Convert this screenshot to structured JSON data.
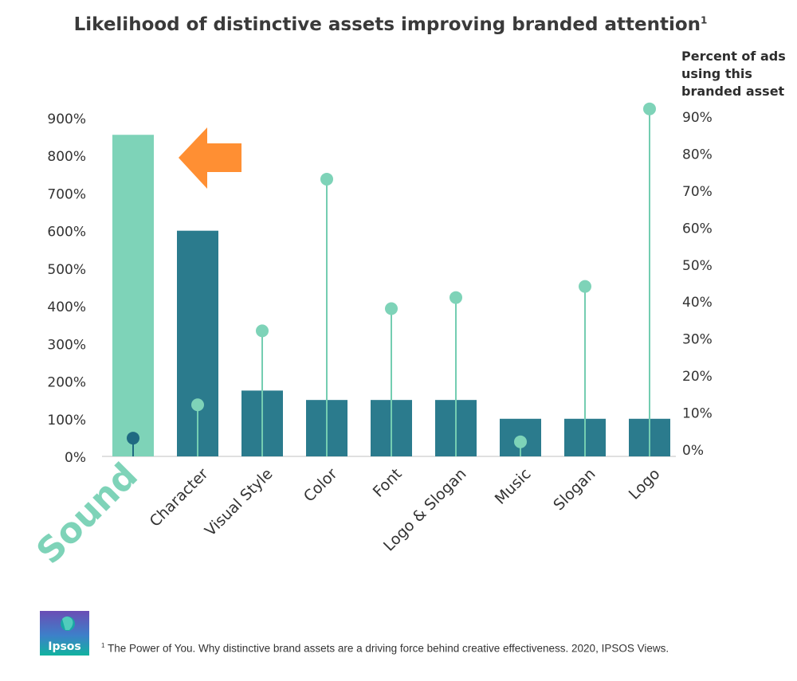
{
  "chart_data": {
    "type": "bar",
    "title": "Likelihood of distinctive assets improving branded attention",
    "title_superscript": "1",
    "categories": [
      "Sound",
      "Character",
      "Visual Style",
      "Color",
      "Font",
      "Logo & Slogan",
      "Music",
      "Slogan",
      "Logo"
    ],
    "series": [
      {
        "name": "Likelihood of improving branded attention",
        "kind": "bar",
        "axis": "left",
        "values": [
          855,
          600,
          175,
          150,
          150,
          150,
          100,
          100,
          100
        ]
      },
      {
        "name": "Percent of ads using this branded asset",
        "kind": "lollipop",
        "axis": "right",
        "values": [
          3,
          12,
          32,
          73,
          38,
          41,
          2,
          44,
          92
        ]
      }
    ],
    "left_axis": {
      "ticks": [
        "0%",
        "100%",
        "200%",
        "300%",
        "400%",
        "500%",
        "600%",
        "700%",
        "800%",
        "900%"
      ],
      "ylim": [
        0,
        900
      ]
    },
    "right_axis": {
      "label": "Percent of ads\nusing this\nbranded asset",
      "ticks": [
        "0%",
        "10%",
        "20%",
        "30%",
        "40%",
        "50%",
        "60%",
        "70%",
        "80%",
        "90%"
      ],
      "ylim": [
        0,
        90
      ]
    },
    "highlight": {
      "category": "Sound",
      "annotation": "arrow"
    },
    "footnote_marker": "1",
    "footnote": "The Power of You. Why distinctive brand assets are a driving force behind creative effectiveness. 2020, IPSOS Views."
  },
  "colors": {
    "highlight_bar": "#7ed3b8",
    "bar": "#2b7b8d",
    "lollipop_dot": "#7ed3b8",
    "lollipop_line": "#74cdb1",
    "highlight_dot": "#1f6a82",
    "arrow": "#ff8f33",
    "text": "#333333",
    "logo_bg_top": "#6b4db5",
    "logo_bg_bottom": "#11b39f"
  },
  "brand": {
    "logo_text": "Ipsos"
  }
}
